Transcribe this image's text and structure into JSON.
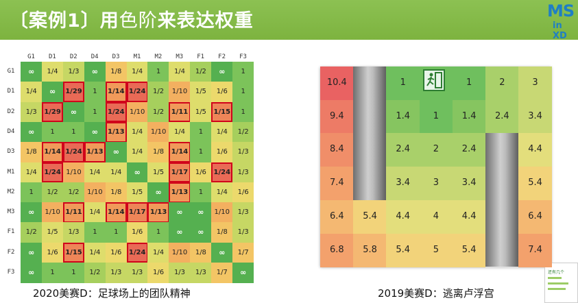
{
  "title": {
    "p1": "〔案例1〕用",
    "p2": "色阶",
    "p3": "来表达权重"
  },
  "logo": {
    "line1": "MS",
    "line2": "in XD"
  },
  "grid1": {
    "headers": [
      "G1",
      "D1",
      "D2",
      "D4",
      "D3",
      "M1",
      "M2",
      "M3",
      "F1",
      "F2",
      "F3"
    ],
    "rows": [
      {
        "label": "G1",
        "cells": [
          "∞",
          "1/4",
          "1/3",
          "∞",
          "1/8",
          "1/4",
          "1",
          "1/4",
          "1/2",
          "∞",
          "1"
        ]
      },
      {
        "label": "D1",
        "cells": [
          "1/4",
          "∞",
          "1/29",
          "1",
          "1/14",
          "1/24",
          "1/2",
          "1/10",
          "1/5",
          "1/6",
          "1"
        ]
      },
      {
        "label": "D2",
        "cells": [
          "1/3",
          "1/29",
          "∞",
          "1",
          "1/24",
          "1/10",
          "1/2",
          "1/11",
          "1/5",
          "1/15",
          "1"
        ]
      },
      {
        "label": "D4",
        "cells": [
          "∞",
          "1",
          "1",
          "∞",
          "1/13",
          "1/4",
          "1/10",
          "1/4",
          "1",
          "1/4",
          "1/2"
        ]
      },
      {
        "label": "D3",
        "cells": [
          "1/8",
          "1/14",
          "1/24",
          "1/13",
          "∞",
          "1/4",
          "1/8",
          "1/14",
          "1",
          "1/6",
          "1/3"
        ]
      },
      {
        "label": "M1",
        "cells": [
          "1/4",
          "1/24",
          "1/10",
          "1/4",
          "1/4",
          "∞",
          "1/5",
          "1/17",
          "1/6",
          "1/24",
          "1/3"
        ]
      },
      {
        "label": "M2",
        "cells": [
          "1",
          "1/2",
          "1/2",
          "1/10",
          "1/8",
          "1/5",
          "∞",
          "1/13",
          "1",
          "1/4",
          "1/6"
        ]
      },
      {
        "label": "M3",
        "cells": [
          "∞",
          "1/10",
          "1/11",
          "1/4",
          "1/14",
          "1/17",
          "1/13",
          "∞",
          "∞",
          "1/10",
          "1/3"
        ]
      },
      {
        "label": "F1",
        "cells": [
          "1/2",
          "1/5",
          "1/3",
          "1",
          "1",
          "1/6",
          "1",
          "∞",
          "∞",
          "1/8",
          "1/3"
        ]
      },
      {
        "label": "F2",
        "cells": [
          "∞",
          "1/6",
          "1/15",
          "1/4",
          "1/6",
          "1/24",
          "1/4",
          "1/10",
          "1/8",
          "∞",
          "1/7"
        ]
      },
      {
        "label": "F3",
        "cells": [
          "∞",
          "1",
          "1",
          "1/2",
          "1/3",
          "1/3",
          "1/6",
          "1/3",
          "1/3",
          "1/7",
          "∞"
        ]
      }
    ],
    "highlighted": [
      "1,2",
      "1,4",
      "1,5",
      "2,1",
      "2,4",
      "2,7",
      "2,9",
      "3,4",
      "4,1",
      "4,2",
      "4,3",
      "4,7",
      "5,1",
      "5,7",
      "5,9",
      "6,7",
      "7,2",
      "7,4",
      "7,5",
      "7,6",
      "9,2",
      "9,5"
    ],
    "caption": "2020美赛D：足球场上的团队精神"
  },
  "grid2": {
    "rows": [
      [
        "10.4",
        "",
        "1",
        "",
        "1",
        "2",
        "3"
      ],
      [
        "9.4",
        "",
        "1.4",
        "1",
        "1.4",
        "2.4",
        "3.4"
      ],
      [
        "8.4",
        "",
        "2.4",
        "2",
        "2.4",
        "",
        "4.4"
      ],
      [
        "7.4",
        "",
        "3.4",
        "3",
        "3.4",
        "",
        "5.4"
      ],
      [
        "6.4",
        "5.4",
        "4.4",
        "4",
        "4.4",
        "",
        "6.4"
      ],
      [
        "6.8",
        "5.8",
        "5.4",
        "5",
        "5.4",
        "",
        "7.4"
      ]
    ],
    "caption": "2019美赛D：逃离卢浮宫"
  },
  "thumb": {
    "label": "还有几个"
  }
}
